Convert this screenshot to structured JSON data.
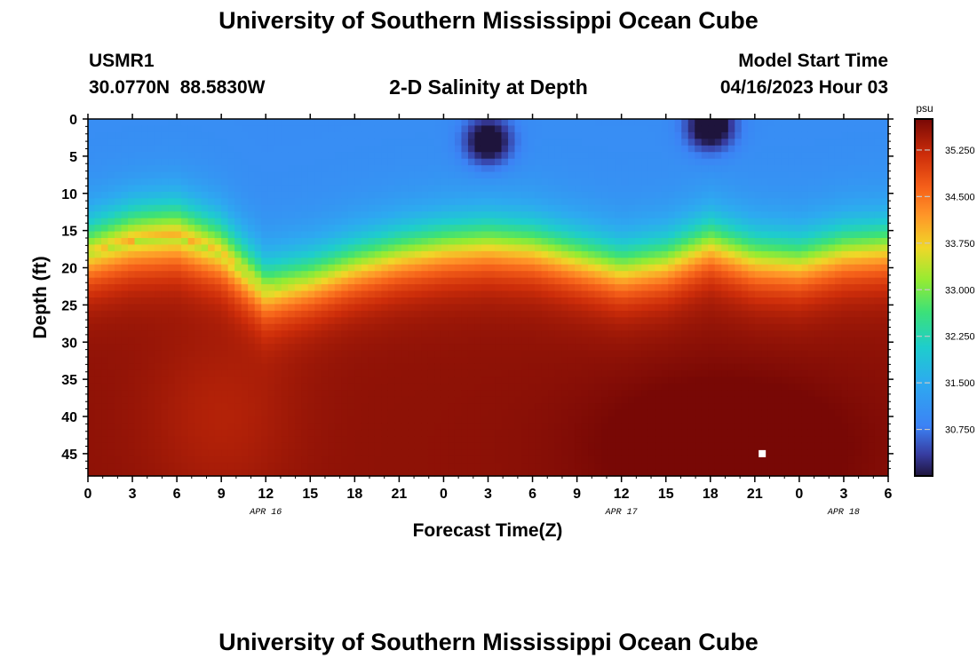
{
  "page": {
    "title": "University of Southern Mississippi Ocean Cube",
    "footer_title": "University of Southern Mississippi Ocean Cube"
  },
  "header": {
    "station": "USMR1",
    "coords": "30.0770N  88.5830W",
    "plot_title": "2-D Salinity at Depth",
    "model_label": "Model Start Time",
    "model_time": "04/16/2023 Hour 03"
  },
  "chart_data": {
    "type": "heatmap",
    "title": "2-D Salinity at Depth",
    "xlabel": "Forecast Time(Z)",
    "ylabel": "Depth (ft)",
    "x_tick_labels": [
      "0",
      "3",
      "6",
      "9",
      "12",
      "15",
      "18",
      "21",
      "0",
      "3",
      "6",
      "9",
      "12",
      "15",
      "18",
      "21",
      "0",
      "3",
      "6"
    ],
    "date_labels": [
      {
        "label": "APR 16",
        "tick_index": 4
      },
      {
        "label": "APR 17",
        "tick_index": 12
      },
      {
        "label": "APR 18",
        "tick_index": 17
      }
    ],
    "x_range_hours": [
      0,
      54
    ],
    "y_ticks": [
      0,
      5,
      10,
      15,
      20,
      25,
      30,
      35,
      40,
      45
    ],
    "y_range_ft": [
      0,
      48
    ],
    "y_inverted": true,
    "colorbar": {
      "unit": "psu",
      "range": [
        30.0,
        35.75
      ],
      "ticks": [
        "35.250",
        "34.500",
        "33.750",
        "33.000",
        "32.250",
        "31.500",
        "30.750"
      ]
    },
    "halocline_depth_ft": {
      "hours": [
        0,
        3,
        6,
        9,
        12,
        15,
        18,
        21,
        24,
        27,
        30,
        33,
        36,
        39,
        42,
        45,
        48,
        51,
        54
      ],
      "depth": [
        18.0,
        16.5,
        16.0,
        18.0,
        23.0,
        21.5,
        19.5,
        18.0,
        17.0,
        16.5,
        17.0,
        18.5,
        20.0,
        19.0,
        16.5,
        18.5,
        19.0,
        17.5,
        17.0
      ]
    },
    "surface_minimum_psu": [
      {
        "hour": 27,
        "depth_ft": 3,
        "value": 30.1
      },
      {
        "hour": 42,
        "depth_ft": 1,
        "value": 30.0
      }
    ],
    "bottom_maximum_psu": 35.6,
    "surface_typical_psu": 31.0,
    "marker": {
      "hour": 45.5,
      "depth_ft": 45
    }
  }
}
